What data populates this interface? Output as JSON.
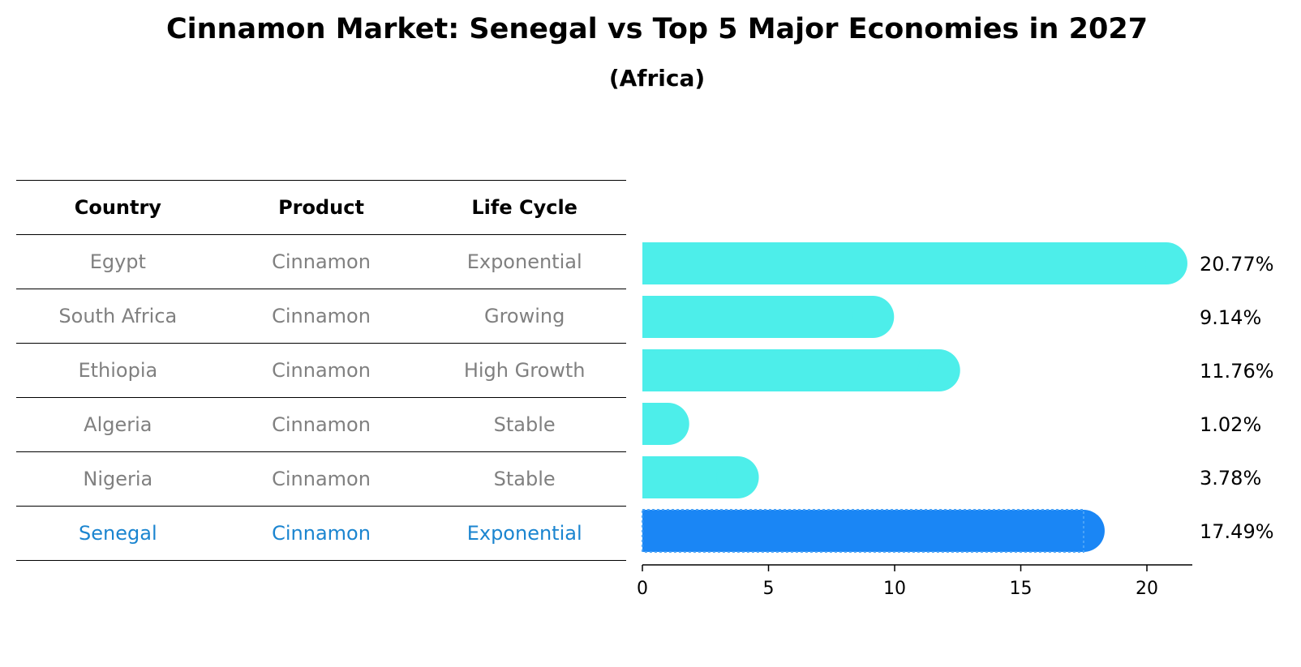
{
  "title": "Cinnamon Market: Senegal vs Top 5 Major Economies in 2027",
  "subtitle": "(Africa)",
  "table": {
    "headers": [
      "Country",
      "Product",
      "Life Cycle"
    ],
    "rows": [
      [
        "Egypt",
        "Cinnamon",
        "Exponential"
      ],
      [
        "South Africa",
        "Cinnamon",
        "Growing"
      ],
      [
        "Ethiopia",
        "Cinnamon",
        "High Growth"
      ],
      [
        "Algeria",
        "Cinnamon",
        "Stable"
      ],
      [
        "Nigeria",
        "Cinnamon",
        "Stable"
      ],
      [
        "Senegal",
        "Cinnamon",
        "Exponential"
      ]
    ]
  },
  "colors": {
    "bar": "#4deeea",
    "highlight": "#1a86f5",
    "highlight_text": "#1b85d0"
  },
  "chart_data": {
    "type": "bar",
    "orientation": "horizontal",
    "categories": [
      "Egypt",
      "South Africa",
      "Ethiopia",
      "Algeria",
      "Nigeria",
      "Senegal"
    ],
    "values": [
      20.77,
      9.14,
      11.76,
      1.02,
      3.78,
      17.49
    ],
    "value_labels": [
      "20.77%",
      "9.14%",
      "11.76%",
      "1.02%",
      "3.78%",
      "17.49%"
    ],
    "highlight": "Senegal",
    "xlim": [
      0,
      21.8
    ],
    "xticks": [
      0,
      5,
      10,
      15,
      20
    ],
    "xlabel": "",
    "ylabel": "",
    "grid": false
  }
}
